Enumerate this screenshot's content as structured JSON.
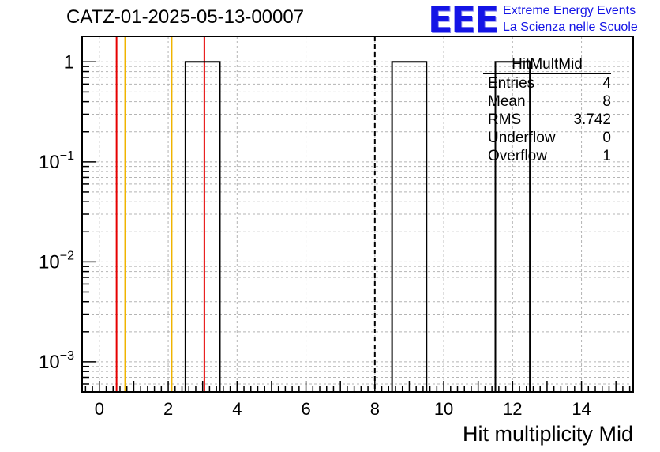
{
  "page": {
    "title": "CATZ-01-2025-05-13-00007"
  },
  "logo": {
    "mark": "EEE",
    "line1": "Extreme Energy Events",
    "line2": "La Scienza nelle Scuole",
    "color": "#1414e6"
  },
  "stats": {
    "title": "HitMultMid",
    "rows": [
      {
        "label": "Entries",
        "value": "4"
      },
      {
        "label": "Mean",
        "value": "8"
      },
      {
        "label": "RMS",
        "value": "3.742"
      },
      {
        "label": "Underflow",
        "value": "0"
      },
      {
        "label": "Overflow",
        "value": "1"
      }
    ]
  },
  "chart_data": {
    "type": "bar",
    "xlabel": "Hit multiplicity Mid",
    "ylabel": "",
    "xlim": [
      -0.5,
      15.5
    ],
    "ylim": [
      0.0005,
      1.8
    ],
    "log_y": true,
    "grid": true,
    "x_ticks": [
      0,
      2,
      4,
      6,
      8,
      10,
      12,
      14
    ],
    "y_ticks": [
      {
        "value": 1,
        "label": "1"
      },
      {
        "value": 0.1,
        "label": "10^-1"
      },
      {
        "value": 0.01,
        "label": "10^-2"
      },
      {
        "value": 0.001,
        "label": "10^-3"
      }
    ],
    "bins": [
      {
        "low": 2.5,
        "high": 3.5,
        "value": 1
      },
      {
        "low": 8.5,
        "high": 9.5,
        "value": 1
      },
      {
        "low": 11.5,
        "high": 12.5,
        "value": 1
      }
    ],
    "vertical_lines": [
      {
        "x": 0.5,
        "color": "#e60000",
        "style": "solid"
      },
      {
        "x": 0.75,
        "color": "#f0b400",
        "style": "solid"
      },
      {
        "x": 2.1,
        "color": "#f0b400",
        "style": "solid"
      },
      {
        "x": 3.05,
        "color": "#e60000",
        "style": "solid"
      },
      {
        "x": 8.0,
        "color": "#000000",
        "style": "dashed"
      }
    ]
  }
}
